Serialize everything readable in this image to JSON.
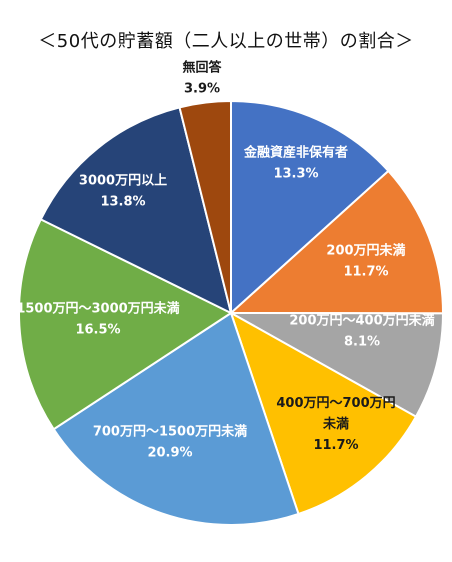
{
  "chart_data": {
    "type": "pie",
    "title": "＜50代の貯蓄額（二人以上の世帯）の割合＞",
    "slices": [
      {
        "label": "金融資産非保有者",
        "label_lines": [
          "金融資産非保有者"
        ],
        "value": 13.3,
        "value_text": "13.3%",
        "color": "#4472C4",
        "text_color": "#ffffff"
      },
      {
        "label": "200万円未満",
        "label_lines": [
          "200万円未満"
        ],
        "value": 11.7,
        "value_text": "11.7%",
        "color": "#ED7D31",
        "text_color": "#ffffff"
      },
      {
        "label": "200万円～400万円未満",
        "label_lines": [
          "200万円～400万円未満"
        ],
        "value": 8.1,
        "value_text": "8.1%",
        "color": "#A5A5A5",
        "text_color": "#ffffff"
      },
      {
        "label": "400万円～700万円未満",
        "label_lines": [
          "400万円～700万円",
          "未満"
        ],
        "value": 11.7,
        "value_text": "11.7%",
        "color": "#FFC000",
        "text_color": "#1a1a1a"
      },
      {
        "label": "700万円～1500万円未満",
        "label_lines": [
          "700万円～1500万円未満"
        ],
        "value": 20.9,
        "value_text": "20.9%",
        "color": "#5B9BD5",
        "text_color": "#ffffff"
      },
      {
        "label": "1500万円～3000万円未満",
        "label_lines": [
          "1500万円～3000万円未満"
        ],
        "value": 16.5,
        "value_text": "16.5%",
        "color": "#70AD47",
        "text_color": "#ffffff"
      },
      {
        "label": "3000万円以上",
        "label_lines": [
          "3000万円以上"
        ],
        "value": 13.8,
        "value_text": "13.8%",
        "color": "#264478",
        "text_color": "#ffffff"
      },
      {
        "label": "無回答",
        "label_lines": [
          "無回答"
        ],
        "value": 3.9,
        "value_text": "3.9%",
        "color": "#9E480E",
        "text_color": "#1a1a1a"
      }
    ],
    "start": "12 o'clock",
    "direction": "clockwise",
    "legend": "none"
  }
}
